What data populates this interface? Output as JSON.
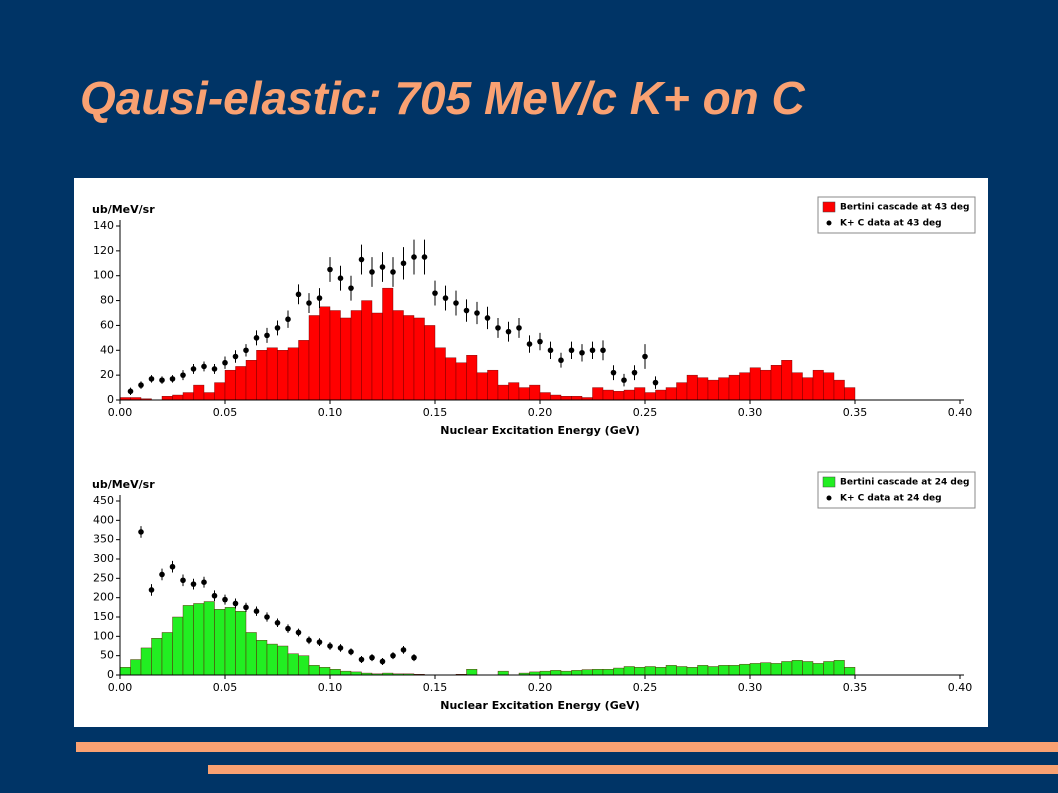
{
  "title": "Qausi-elastic: 705 MeV/c K+ on C",
  "chart_data": [
    {
      "type": "histogram",
      "y_label": "ub/MeV/sr",
      "x_label": "Nuclear Excitation Energy (GeV)",
      "bins": [
        0,
        0.005,
        0.01,
        0.015,
        0.02,
        0.025,
        0.03,
        0.035,
        0.04,
        0.045,
        0.05,
        0.055,
        0.06,
        0.065,
        0.07,
        0.075,
        0.08,
        0.085,
        0.09,
        0.095,
        0.1,
        0.105,
        0.11,
        0.115,
        0.12,
        0.125,
        0.13,
        0.135,
        0.14,
        0.145,
        0.15,
        0.155,
        0.16,
        0.165,
        0.17,
        0.175,
        0.18,
        0.185,
        0.19,
        0.195,
        0.2,
        0.205,
        0.21,
        0.215,
        0.22,
        0.225,
        0.23,
        0.235,
        0.24,
        0.245,
        0.25,
        0.255,
        0.26,
        0.265,
        0.27,
        0.275,
        0.28,
        0.285,
        0.29,
        0.295,
        0.3,
        0.305,
        0.31,
        0.315,
        0.32,
        0.325,
        0.33,
        0.335,
        0.34,
        0.345,
        0.35
      ],
      "series": [
        {
          "name": "Bertini cascade at 43 deg",
          "color": "#ff0000",
          "values": [
            2,
            2,
            1,
            0,
            3,
            4,
            6,
            12,
            6,
            14,
            24,
            27,
            32,
            40,
            42,
            40,
            42,
            48,
            68,
            75,
            72,
            66,
            72,
            80,
            70,
            90,
            72,
            68,
            66,
            60,
            42,
            34,
            30,
            36,
            22,
            24,
            12,
            14,
            10,
            12,
            6,
            4,
            3,
            3,
            2,
            10,
            8,
            7,
            8,
            10,
            6,
            8,
            10,
            14,
            20,
            18,
            16,
            18,
            20,
            22,
            26,
            24,
            28,
            32,
            22,
            18,
            24,
            22,
            16,
            10
          ]
        }
      ],
      "points": {
        "name": "K+ C data at 43 deg",
        "color": "#000000",
        "x": [
          0.005,
          0.01,
          0.015,
          0.02,
          0.025,
          0.03,
          0.035,
          0.04,
          0.045,
          0.05,
          0.055,
          0.06,
          0.065,
          0.07,
          0.075,
          0.08,
          0.085,
          0.09,
          0.095,
          0.1,
          0.105,
          0.11,
          0.115,
          0.12,
          0.125,
          0.13,
          0.135,
          0.14,
          0.145,
          0.15,
          0.155,
          0.16,
          0.165,
          0.17,
          0.175,
          0.18,
          0.185,
          0.19,
          0.195,
          0.2,
          0.205,
          0.21,
          0.215,
          0.22,
          0.225,
          0.23,
          0.235,
          0.24,
          0.245,
          0.25,
          0.255
        ],
        "values": [
          7,
          12,
          17,
          16,
          17,
          20,
          25,
          27,
          25,
          30,
          35,
          40,
          50,
          52,
          58,
          65,
          85,
          78,
          82,
          105,
          98,
          90,
          113,
          103,
          107,
          103,
          110,
          115,
          115,
          86,
          82,
          78,
          72,
          70,
          66,
          58,
          55,
          58,
          45,
          47,
          40,
          32,
          40,
          38,
          40,
          40,
          22,
          16,
          22,
          35,
          14
        ],
        "errors": [
          3,
          3,
          3,
          3,
          3,
          4,
          4,
          4,
          4,
          5,
          5,
          5,
          6,
          6,
          6,
          7,
          8,
          8,
          8,
          10,
          10,
          10,
          12,
          12,
          12,
          12,
          13,
          14,
          14,
          10,
          10,
          10,
          9,
          9,
          9,
          8,
          8,
          8,
          7,
          7,
          7,
          6,
          7,
          7,
          7,
          8,
          6,
          5,
          6,
          10,
          5
        ]
      },
      "xlim": [
        0,
        0.4
      ],
      "xticks": [
        {
          "value": 0,
          "label": "0.00"
        },
        {
          "value": 0.05,
          "label": "0.05"
        },
        {
          "value": 0.1,
          "label": "0.10"
        },
        {
          "value": 0.15,
          "label": "0.15"
        },
        {
          "value": 0.2,
          "label": "0.20"
        },
        {
          "value": 0.25,
          "label": "0.25"
        },
        {
          "value": 0.3,
          "label": "0.30"
        },
        {
          "value": 0.35,
          "label": "0.35"
        },
        {
          "value": 0.4,
          "label": "0.40"
        }
      ],
      "ylim": [
        0,
        140
      ],
      "yticks": [
        0,
        20,
        40,
        60,
        80,
        100,
        120,
        140
      ],
      "legend": "top-right"
    },
    {
      "type": "histogram",
      "y_label": "ub/MeV/sr",
      "x_label": "Nuclear Excitation Energy (GeV)",
      "bins": [
        0,
        0.005,
        0.01,
        0.015,
        0.02,
        0.025,
        0.03,
        0.035,
        0.04,
        0.045,
        0.05,
        0.055,
        0.06,
        0.065,
        0.07,
        0.075,
        0.08,
        0.085,
        0.09,
        0.095,
        0.1,
        0.105,
        0.11,
        0.115,
        0.12,
        0.125,
        0.13,
        0.135,
        0.14,
        0.145,
        0.15,
        0.155,
        0.16,
        0.165,
        0.17,
        0.175,
        0.18,
        0.185,
        0.19,
        0.195,
        0.2,
        0.205,
        0.21,
        0.215,
        0.22,
        0.225,
        0.23,
        0.235,
        0.24,
        0.245,
        0.25,
        0.255,
        0.26,
        0.265,
        0.27,
        0.275,
        0.28,
        0.285,
        0.29,
        0.295,
        0.3,
        0.305,
        0.31,
        0.315,
        0.32,
        0.325,
        0.33,
        0.335,
        0.34,
        0.345,
        0.35
      ],
      "series": [
        {
          "name": "Bertini cascade at 24 deg",
          "color": "#22ee22",
          "values": [
            20,
            40,
            70,
            95,
            110,
            150,
            180,
            185,
            190,
            170,
            175,
            165,
            110,
            90,
            80,
            75,
            55,
            50,
            25,
            20,
            15,
            10,
            8,
            5,
            3,
            5,
            3,
            3,
            2,
            0,
            0,
            0,
            2,
            15,
            0,
            0,
            10,
            0,
            5,
            8,
            10,
            12,
            10,
            12,
            14,
            15,
            15,
            18,
            22,
            20,
            22,
            20,
            25,
            22,
            20,
            25,
            22,
            25,
            25,
            28,
            30,
            32,
            30,
            35,
            38,
            35,
            30,
            35,
            38,
            20
          ]
        }
      ],
      "points": {
        "name": "K+ C data at 24 deg",
        "color": "#000000",
        "x": [
          0.01,
          0.015,
          0.02,
          0.025,
          0.03,
          0.035,
          0.04,
          0.045,
          0.05,
          0.055,
          0.06,
          0.065,
          0.07,
          0.075,
          0.08,
          0.085,
          0.09,
          0.095,
          0.1,
          0.105,
          0.11,
          0.115,
          0.12,
          0.125,
          0.13,
          0.135,
          0.14
        ],
        "values": [
          370,
          220,
          260,
          280,
          245,
          235,
          240,
          205,
          195,
          185,
          175,
          165,
          150,
          135,
          120,
          110,
          90,
          85,
          75,
          70,
          60,
          40,
          45,
          35,
          50,
          65,
          45
        ],
        "errors": [
          15,
          15,
          15,
          15,
          15,
          14,
          14,
          14,
          13,
          13,
          12,
          12,
          12,
          11,
          11,
          10,
          10,
          10,
          10,
          10,
          9,
          9,
          9,
          9,
          9,
          10,
          9
        ]
      },
      "xlim": [
        0,
        0.4
      ],
      "xticks": [
        {
          "value": 0,
          "label": "0.00"
        },
        {
          "value": 0.05,
          "label": "0.05"
        },
        {
          "value": 0.1,
          "label": "0.10"
        },
        {
          "value": 0.15,
          "label": "0.15"
        },
        {
          "value": 0.2,
          "label": "0.20"
        },
        {
          "value": 0.25,
          "label": "0.25"
        },
        {
          "value": 0.3,
          "label": "0.30"
        },
        {
          "value": 0.35,
          "label": "0.35"
        },
        {
          "value": 0.4,
          "label": "0.40"
        }
      ],
      "ylim": [
        0,
        450
      ],
      "yticks": [
        0,
        50,
        100,
        150,
        200,
        250,
        300,
        350,
        400,
        450
      ],
      "legend": "top-right"
    }
  ]
}
